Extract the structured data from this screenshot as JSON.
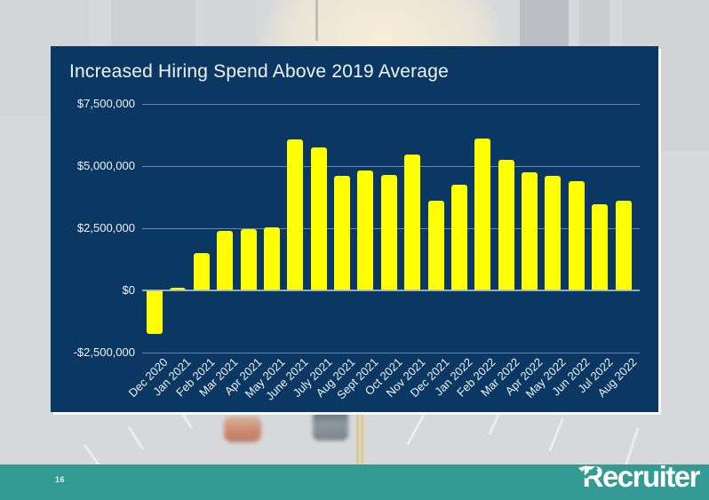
{
  "slide": {
    "page_number": "16",
    "footer_logo": "Recruiter"
  },
  "colors": {
    "accent_teal": "#349a94",
    "slide_background": "#d6d8da",
    "footer_text": "#ffffff"
  },
  "chart_data": {
    "type": "bar",
    "title": "Increased Hiring Spend Above 2019 Average",
    "categories": [
      "Dec 2020",
      "Jan 2021",
      "Feb 2021",
      "Mar 2021",
      "Apr 2021",
      "May 2021",
      "June 2021",
      "July 2021",
      "Aug 2021",
      "Sept 2021",
      "Oct 2021",
      "Nov 2021",
      "Dec 2021",
      "Jan 2022",
      "Feb 2022",
      "Mar 2022",
      "Apr 2022",
      "May 2022",
      "Jun 2022",
      "Jul 2022",
      "Aug 2022"
    ],
    "values": [
      -1750000,
      100000,
      1500000,
      2400000,
      2450000,
      2550000,
      6050000,
      5750000,
      4600000,
      4800000,
      4650000,
      5450000,
      3600000,
      4250000,
      6100000,
      5250000,
      4750000,
      4600000,
      4400000,
      3450000,
      3600000
    ],
    "y_ticks": [
      {
        "value": 7500000,
        "label": "$7,500,000"
      },
      {
        "value": 5000000,
        "label": "$5,000,000"
      },
      {
        "value": 2500000,
        "label": "$2,500,000"
      },
      {
        "value": 0,
        "label": "$0"
      },
      {
        "value": -2500000,
        "label": "-$2,500,000"
      }
    ],
    "ylim": [
      -2500000,
      7500000
    ],
    "grid": true,
    "legend": false,
    "bar_color": "#ffff00",
    "panel_background": "#0b3863",
    "gridline_color": "#7d9cc0",
    "zero_line_color": "#aebfce",
    "text_color": "#eef3f8"
  }
}
